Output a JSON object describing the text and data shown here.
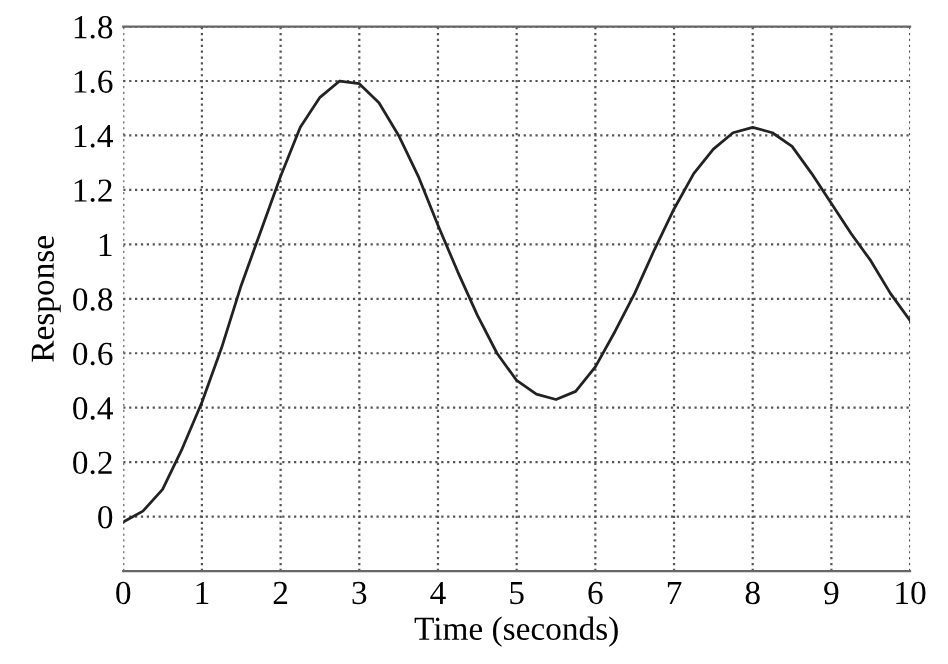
{
  "chart_data": {
    "type": "line",
    "xlabel": "Time (seconds)",
    "ylabel": "Response",
    "x": [
      0,
      0.25,
      0.5,
      0.75,
      1,
      1.25,
      1.5,
      1.75,
      2,
      2.25,
      2.5,
      2.75,
      3,
      3.25,
      3.5,
      3.75,
      4,
      4.25,
      4.5,
      4.75,
      5,
      5.25,
      5.5,
      5.75,
      6,
      6.25,
      6.5,
      6.75,
      7,
      7.25,
      7.5,
      7.75,
      8,
      8.25,
      8.5,
      8.75,
      9,
      9.25,
      9.5,
      9.75,
      10
    ],
    "series": [
      {
        "color": "#222222",
        "values": [
          -0.02,
          0.02,
          0.1,
          0.25,
          0.42,
          0.62,
          0.85,
          1.05,
          1.25,
          1.43,
          1.54,
          1.6,
          1.59,
          1.52,
          1.4,
          1.25,
          1.07,
          0.9,
          0.74,
          0.6,
          0.5,
          0.45,
          0.43,
          0.46,
          0.55,
          0.68,
          0.82,
          0.98,
          1.13,
          1.26,
          1.35,
          1.41,
          1.43,
          1.41,
          1.36,
          1.26,
          1.15,
          1.04,
          0.94,
          0.82,
          0.72
        ]
      }
    ],
    "xlim": [
      0,
      10
    ],
    "xticks": [
      0,
      1,
      2,
      3,
      4,
      5,
      6,
      7,
      8,
      9,
      10
    ],
    "ylim": [
      -0.2,
      1.8
    ],
    "yticks": [
      0,
      0.2,
      0.4,
      0.6,
      0.8,
      1,
      1.2,
      1.4,
      1.6,
      1.8
    ],
    "grid": true,
    "line_style": "solid",
    "marker": "none"
  }
}
